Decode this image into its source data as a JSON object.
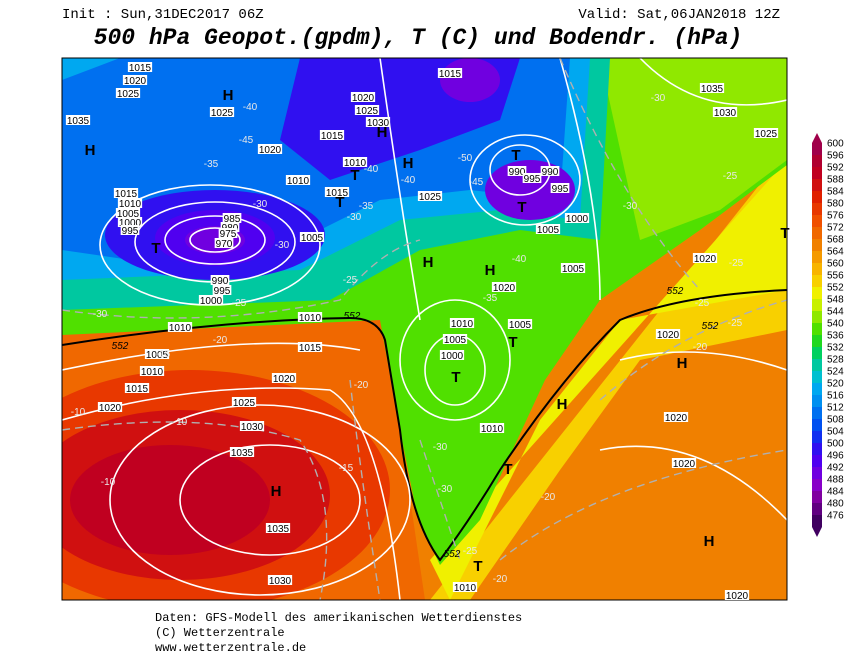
{
  "header": {
    "init": "Init : Sun,31DEC2017 06Z",
    "valid": "Valid: Sat,06JAN2018 12Z",
    "title": "500 hPa Geopot.(gpdm), T (C) und Bodendr. (hPa)"
  },
  "colorbar": {
    "labels": [
      "600",
      "596",
      "592",
      "588",
      "584",
      "580",
      "576",
      "572",
      "568",
      "564",
      "560",
      "556",
      "552",
      "548",
      "544",
      "540",
      "536",
      "532",
      "528",
      "524",
      "520",
      "516",
      "512",
      "508",
      "504",
      "500",
      "496",
      "492",
      "488",
      "484",
      "480",
      "476"
    ],
    "colors": [
      "#a0004a",
      "#b00030",
      "#c00020",
      "#d01010",
      "#e02000",
      "#e83800",
      "#f05000",
      "#f06800",
      "#f08000",
      "#f59a00",
      "#f8b400",
      "#f8d000",
      "#f0f000",
      "#c8f000",
      "#90e800",
      "#50e000",
      "#20d820",
      "#00d060",
      "#00c8a0",
      "#00c0d0",
      "#00a8f0",
      "#0090f0",
      "#0070f0",
      "#0050f0",
      "#1030f0",
      "#3010f0",
      "#5000f0",
      "#7000e0",
      "#8800c8",
      "#8000a0",
      "#600080",
      "#400060"
    ]
  },
  "map_labels": {
    "pressure_centers": [
      "H",
      "H",
      "H",
      "H",
      "H",
      "H",
      "H",
      "H",
      "H",
      "H",
      "T",
      "T",
      "T",
      "T",
      "T",
      "T",
      "T",
      "T",
      "T",
      "T",
      "T"
    ],
    "isobars": [
      "1015",
      "1020",
      "1025",
      "1035",
      "1025",
      "1020",
      "1010",
      "1015",
      "1020",
      "1025",
      "1030",
      "1010",
      "1015",
      "1005",
      "1015",
      "1025",
      "990",
      "995",
      "990",
      "995",
      "1000",
      "1005",
      "1005",
      "1020",
      "1010",
      "1005",
      "1000",
      "1005",
      "1010",
      "1020",
      "1035",
      "1030",
      "1025",
      "1020",
      "1020",
      "1020",
      "1020",
      "1015",
      "1010",
      "1005",
      "1000",
      "995",
      "985",
      "980",
      "975",
      "970",
      "990",
      "995",
      "1000",
      "1010",
      "1015",
      "1010",
      "1005",
      "1010",
      "1015",
      "1020",
      "1025",
      "1020",
      "1030",
      "1035",
      "1035",
      "1030",
      "1010"
    ],
    "temperatures": [
      "-40",
      "-45",
      "-35",
      "-30",
      "-30",
      "-40",
      "-40",
      "-35",
      "-30",
      "-50",
      "-45",
      "-40",
      "-35",
      "-30",
      "-25",
      "-25",
      "-25",
      "-30",
      "-25",
      "-20",
      "-25",
      "-20",
      "-15",
      "-10",
      "-10",
      "-15",
      "-10",
      "-20",
      "-20",
      "-20",
      "-25",
      "-30",
      "-30",
      "-30",
      "-25"
    ],
    "heights": [
      "552",
      "552",
      "552",
      "552",
      "552"
    ]
  },
  "footer": {
    "source": "Daten: GFS-Modell des amerikanischen Wetterdienstes",
    "copyright": "(C) Wetterzentrale",
    "url": "www.wetterzentrale.de"
  }
}
